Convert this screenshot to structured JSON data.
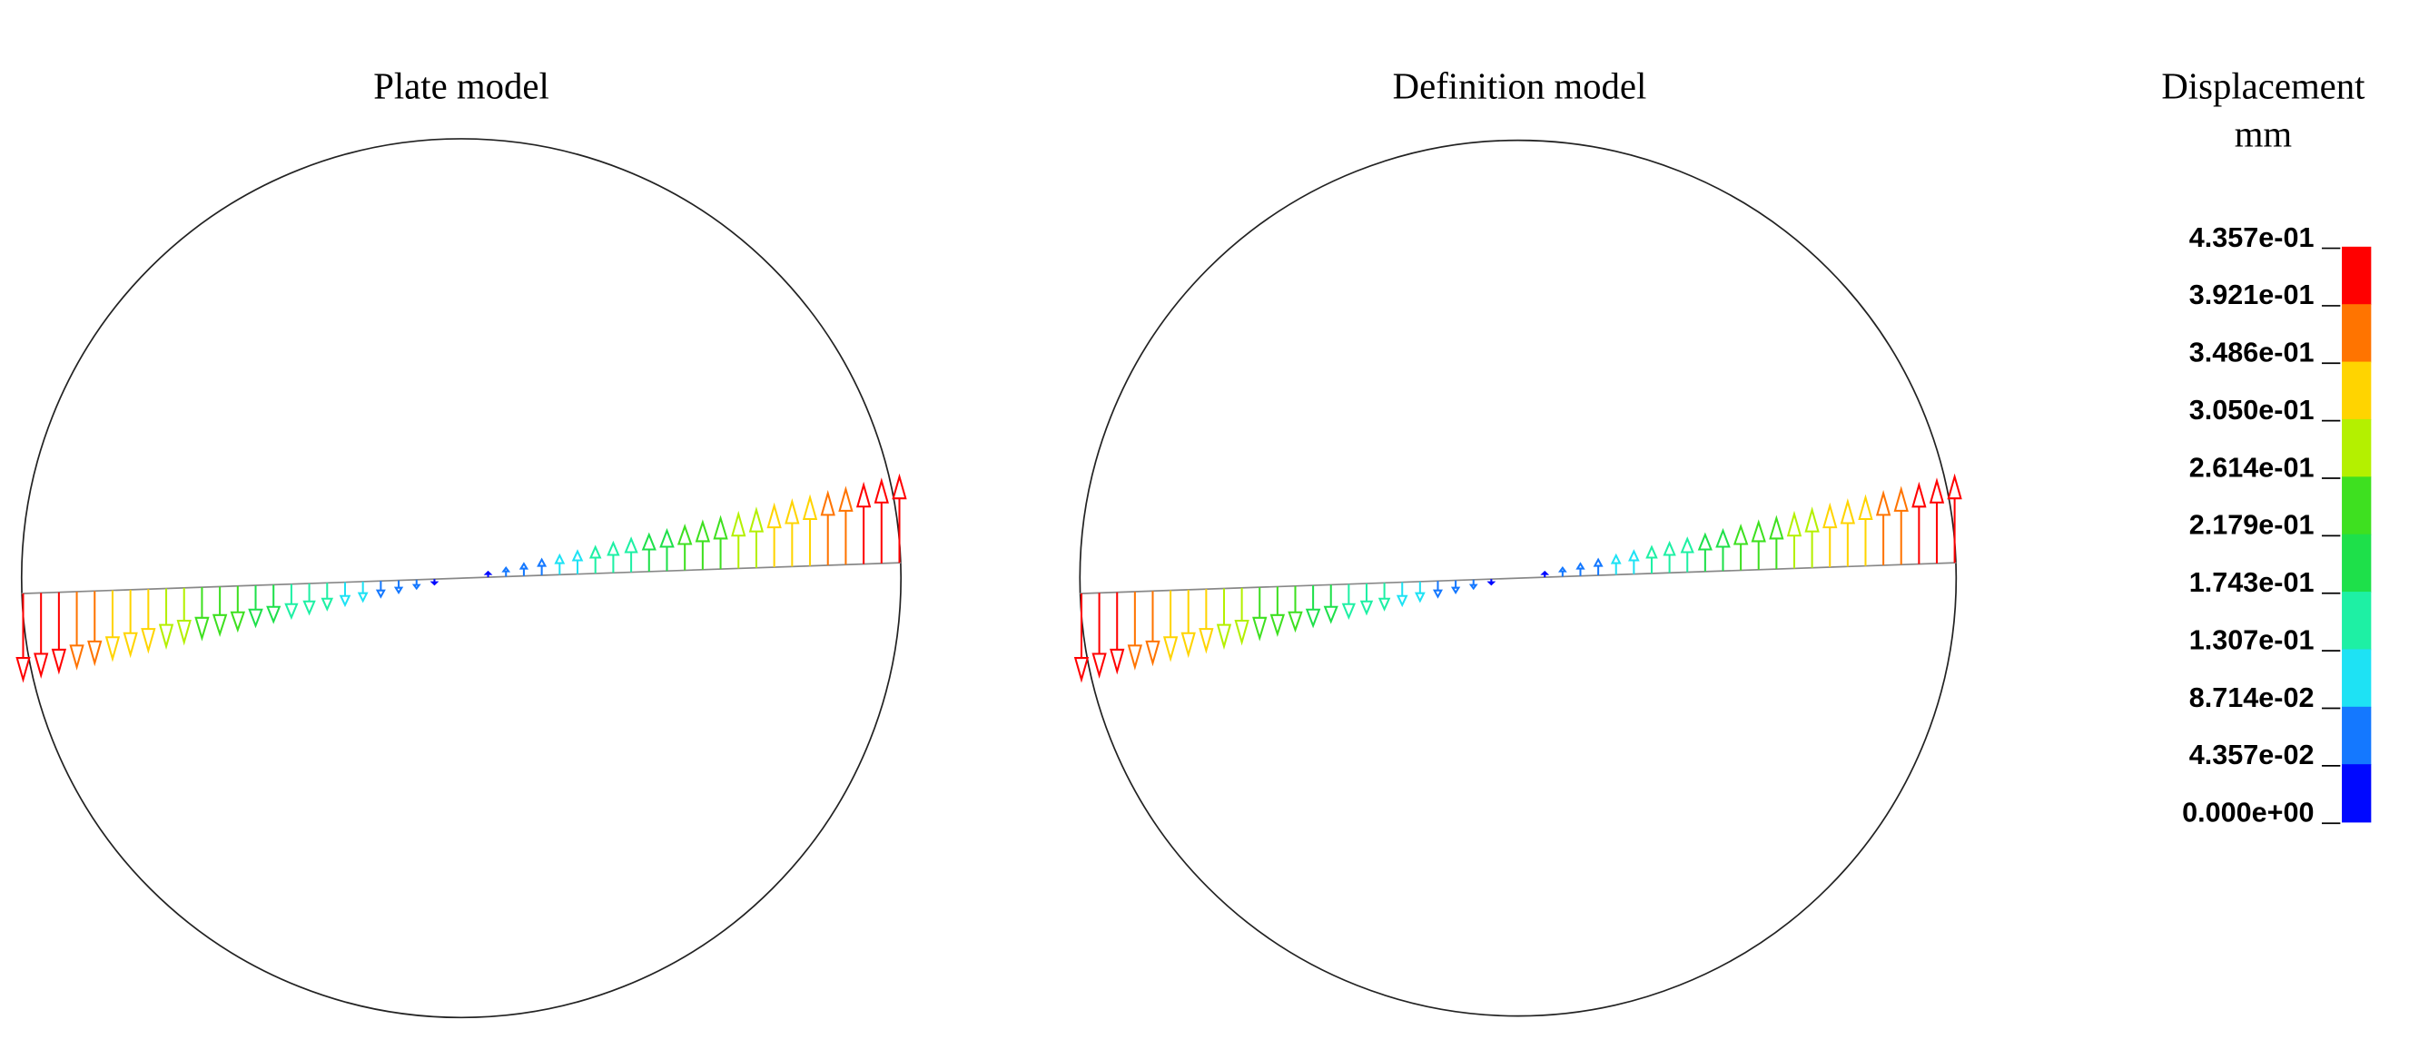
{
  "panels": [
    {
      "title": "Plate model"
    },
    {
      "title": "Definition model"
    }
  ],
  "legend": {
    "title": "Displacement",
    "unit": "mm",
    "labels": [
      "4.357e-01",
      "3.921e-01",
      "3.486e-01",
      "3.050e-01",
      "2.614e-01",
      "2.179e-01",
      "1.743e-01",
      "1.307e-01",
      "8.714e-02",
      "4.357e-02",
      "0.000e+00"
    ],
    "colors": [
      "#ff0000",
      "#ff7400",
      "#ffd400",
      "#b4f000",
      "#3ee020",
      "#1ee04a",
      "#1ef0a4",
      "#1ee2f4",
      "#1478ff",
      "#0008ff"
    ]
  }
}
